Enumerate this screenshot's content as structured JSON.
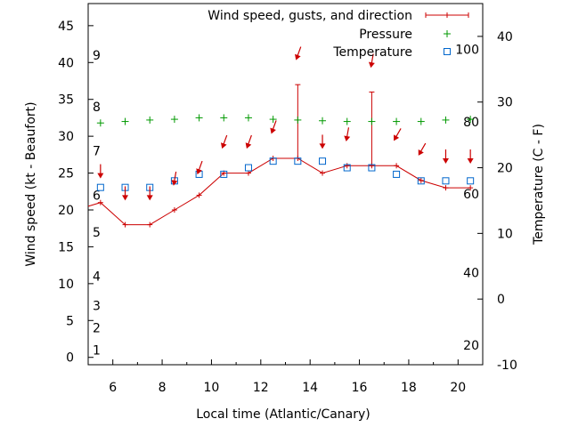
{
  "chart_data": {
    "type": "line",
    "xlabel": "Local time (Atlantic/Canary)",
    "ylabel": "Wind speed (kt - Beaufort)",
    "y2label": "Temperature (C - F)",
    "xlim": [
      5,
      21
    ],
    "ylim": [
      -1,
      48
    ],
    "y2lim": [
      -10,
      45
    ],
    "x_ticks": [
      6,
      8,
      10,
      12,
      14,
      16,
      18,
      20
    ],
    "y_ticks": [
      0,
      5,
      10,
      15,
      20,
      25,
      30,
      35,
      40,
      45
    ],
    "y2_ticks": [
      -10,
      0,
      10,
      20,
      30,
      40
    ],
    "beaufort_labels": [
      {
        "text": "1",
        "y": 1
      },
      {
        "text": "2",
        "y": 4
      },
      {
        "text": "3",
        "y": 7
      },
      {
        "text": "4",
        "y": 11
      },
      {
        "text": "5",
        "y": 17
      },
      {
        "text": "6",
        "y": 22
      },
      {
        "text": "7",
        "y": 28
      },
      {
        "text": "8",
        "y": 34
      },
      {
        "text": "9",
        "y": 41
      }
    ],
    "fahrenheit_labels": [
      {
        "text": "20",
        "y2": -7
      },
      {
        "text": "40",
        "y2": 4
      },
      {
        "text": "60",
        "y2": 16
      },
      {
        "text": "80",
        "y2": 27
      },
      {
        "text": "100",
        "y2": 38
      }
    ],
    "legend": {
      "position": "top-right",
      "entries": [
        {
          "label": "Wind speed, gusts, and direction",
          "color": "#cc0000",
          "marker": "errorbar"
        },
        {
          "label": "Pressure",
          "color": "#009900",
          "marker": "plus"
        },
        {
          "label": "Temperature",
          "color": "#0066cc",
          "marker": "square"
        }
      ]
    },
    "series": [
      {
        "name": "Wind speed, gusts, and direction",
        "color": "#cc0000",
        "x": [
          5,
          5.5,
          6.5,
          7.5,
          8.5,
          9.5,
          10.5,
          11.5,
          12.5,
          13.5,
          14.5,
          15.5,
          16.5,
          17.5,
          18.5,
          19.5,
          20.5
        ],
        "y": [
          20.5,
          21,
          18,
          18,
          20,
          22,
          25,
          25,
          27,
          27,
          25,
          26,
          26,
          26,
          24,
          23,
          23
        ],
        "gusts": [
          null,
          null,
          null,
          null,
          null,
          null,
          null,
          null,
          null,
          37,
          null,
          null,
          36,
          null,
          null,
          null,
          null
        ]
      },
      {
        "name": "Pressure",
        "color": "#009900",
        "x": [
          5.5,
          6.5,
          7.5,
          8.5,
          9.5,
          10.5,
          11.5,
          12.5,
          13.5,
          14.5,
          15.5,
          16.5,
          17.5,
          18.5,
          19.5,
          20.5
        ],
        "y": [
          31.8,
          32.0,
          32.2,
          32.3,
          32.5,
          32.5,
          32.5,
          32.3,
          32.2,
          32.1,
          32.0,
          32.0,
          32.0,
          32.0,
          32.2,
          32.3
        ]
      },
      {
        "name": "Temperature",
        "color": "#0066cc",
        "x": [
          5.5,
          6.5,
          7.5,
          8.5,
          9.5,
          10.5,
          11.5,
          12.5,
          13.5,
          14.5,
          15.5,
          16.5,
          17.5,
          18.5,
          19.5,
          20.5
        ],
        "y2": [
          17,
          17,
          17,
          18,
          19,
          19,
          20,
          21,
          21,
          21,
          20,
          20,
          19,
          18,
          18,
          18
        ]
      },
      {
        "name": "Wind direction",
        "color": "#cc0000",
        "x": [
          5.5,
          6.5,
          7.5,
          8.5,
          9.5,
          10.5,
          11.5,
          12.5,
          13.5,
          14.5,
          15.5,
          16.5,
          17.5,
          18.5,
          19.5,
          20.5
        ],
        "y": [
          25,
          22,
          22,
          24,
          25.5,
          29,
          29,
          31,
          41,
          29,
          30,
          40,
          30,
          28,
          27,
          27
        ],
        "dir": [
          0,
          0,
          0,
          10,
          20,
          20,
          20,
          20,
          20,
          0,
          10,
          10,
          30,
          30,
          0,
          0
        ]
      }
    ]
  }
}
